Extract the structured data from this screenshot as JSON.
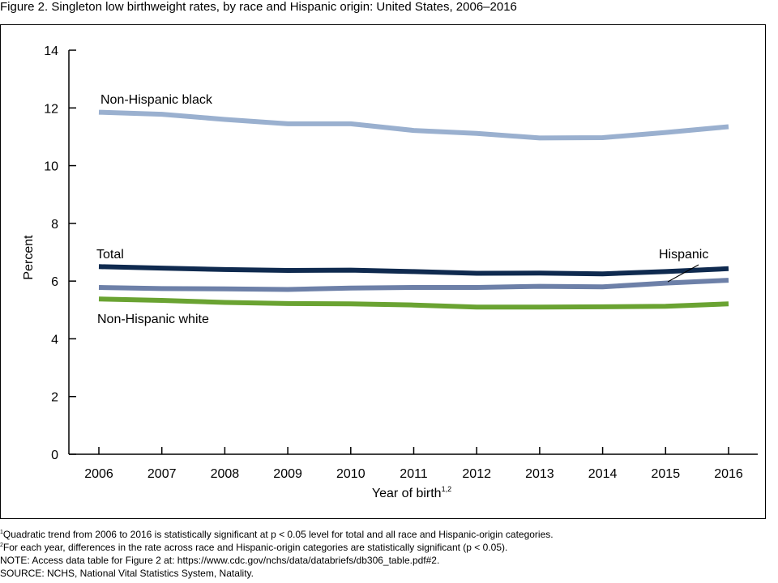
{
  "figure_title": "Figure 2. Singleton low birthweight rates, by race and Hispanic origin: United States, 2006–2016",
  "chart_data": {
    "type": "line",
    "title": "",
    "xlabel": "Year of birth",
    "xlabel_superscript": "1,2",
    "ylabel": "Percent",
    "ylim": [
      0,
      14
    ],
    "yticks": [
      0,
      2,
      4,
      6,
      8,
      10,
      12,
      14
    ],
    "x": [
      2006,
      2007,
      2008,
      2009,
      2010,
      2011,
      2012,
      2013,
      2014,
      2015,
      2016
    ],
    "grid": false,
    "legend": "direct labels on lines",
    "series": [
      {
        "name": "Non-Hispanic black",
        "color": "#9ab0cf",
        "values": [
          11.85,
          11.78,
          11.6,
          11.45,
          11.45,
          11.22,
          11.12,
          10.96,
          10.97,
          11.15,
          11.35
        ]
      },
      {
        "name": "Total",
        "color": "#0f2a4f",
        "values": [
          6.5,
          6.45,
          6.4,
          6.37,
          6.38,
          6.33,
          6.27,
          6.28,
          6.25,
          6.33,
          6.43
        ]
      },
      {
        "name": "Hispanic",
        "color": "#6d80a8",
        "values": [
          5.78,
          5.74,
          5.73,
          5.71,
          5.76,
          5.78,
          5.78,
          5.82,
          5.8,
          5.93,
          6.03
        ]
      },
      {
        "name": "Non-Hispanic white",
        "color": "#6aa332",
        "values": [
          5.38,
          5.33,
          5.26,
          5.22,
          5.21,
          5.17,
          5.1,
          5.1,
          5.11,
          5.13,
          5.21
        ]
      }
    ]
  },
  "notes": {
    "note1_sup": "1",
    "note1": "Quadratic trend from 2006 to 2016 is statistically significant at p < 0.05 level for total and all race and Hispanic-origin categories.",
    "note2_sup": "2",
    "note2": "For each year, differences in the rate across race and Hispanic-origin categories are statistically significant (p < 0.05).",
    "note3": "NOTE: Access data table for Figure 2 at: https://www.cdc.gov/nchs/data/databriefs/db306_table.pdf#2.",
    "source": "SOURCE: NCHS, National Vital Statistics System, Natality."
  }
}
